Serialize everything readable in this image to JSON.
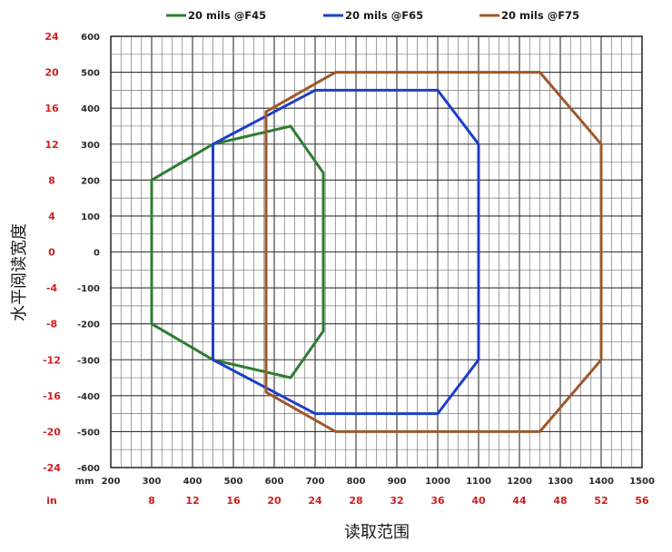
{
  "chart_data": {
    "type": "line",
    "title": "",
    "xlabel": "读取范围",
    "ylabel": "水平阅读宽度",
    "x_unit_primary": "mm",
    "x_unit_secondary": "in",
    "xlim": [
      200,
      1500
    ],
    "ylim": [
      -600,
      600
    ],
    "x_ticks_mm": [
      "200",
      "300",
      "400",
      "500",
      "600",
      "700",
      "800",
      "900",
      "1000",
      "1100",
      "1200",
      "1300",
      "1400",
      "1500"
    ],
    "x_ticks_in": [
      "8",
      "12",
      "16",
      "20",
      "24",
      "28",
      "32",
      "36",
      "40",
      "44",
      "48",
      "52",
      "56"
    ],
    "y_ticks_mm": [
      "600",
      "500",
      "400",
      "300",
      "200",
      "100",
      "0",
      "-100",
      "-200",
      "-300",
      "-400",
      "-500",
      "-600"
    ],
    "y_ticks_in": [
      "24",
      "20",
      "16",
      "12",
      "8",
      "4",
      "0",
      "-4",
      "-8",
      "-12",
      "-16",
      "-20",
      "-24"
    ],
    "grid": true,
    "legend_position": "top",
    "series": [
      {
        "name": "20 mils @F45",
        "color": "#2e7d32",
        "x": [
          300,
          450,
          640,
          720,
          720,
          640,
          450,
          300,
          300
        ],
        "y": [
          200,
          300,
          350,
          220,
          -220,
          -350,
          -300,
          -200,
          200
        ]
      },
      {
        "name": "20 mils @F65",
        "color": "#1e3fc8",
        "x": [
          450,
          700,
          1000,
          1100,
          1100,
          1000,
          700,
          450,
          450
        ],
        "y": [
          300,
          450,
          450,
          300,
          -300,
          -450,
          -450,
          -300,
          300
        ]
      },
      {
        "name": "20 mils @F75",
        "color": "#a0582a",
        "x": [
          580,
          750,
          1250,
          1400,
          1400,
          1250,
          750,
          580,
          580
        ],
        "y": [
          390,
          500,
          500,
          300,
          -300,
          -500,
          -500,
          -390,
          390
        ]
      }
    ]
  }
}
